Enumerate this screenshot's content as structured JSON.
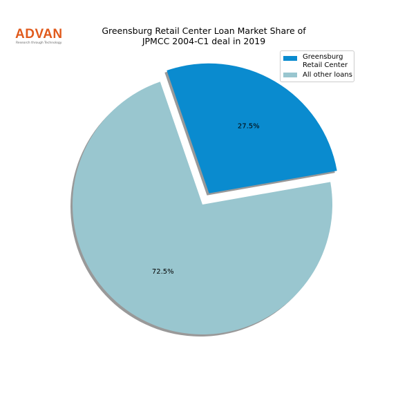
{
  "logo": {
    "name": "ADVAN",
    "tagline": "Research through Technology"
  },
  "chart_data": {
    "type": "pie",
    "title": "Greensburg Retail Center Loan Market Share of\nJPMCC 2004-C1 deal in 2019",
    "categories": [
      "Greensburg\nRetail Center",
      "All other loans"
    ],
    "values": [
      27.5,
      72.5
    ],
    "value_labels": [
      "27.5%",
      "72.5%"
    ],
    "colors": [
      "#0a8bcf",
      "#99c6cf"
    ],
    "explode": [
      0.1,
      0
    ],
    "shadow": true,
    "legend": "upper right"
  }
}
